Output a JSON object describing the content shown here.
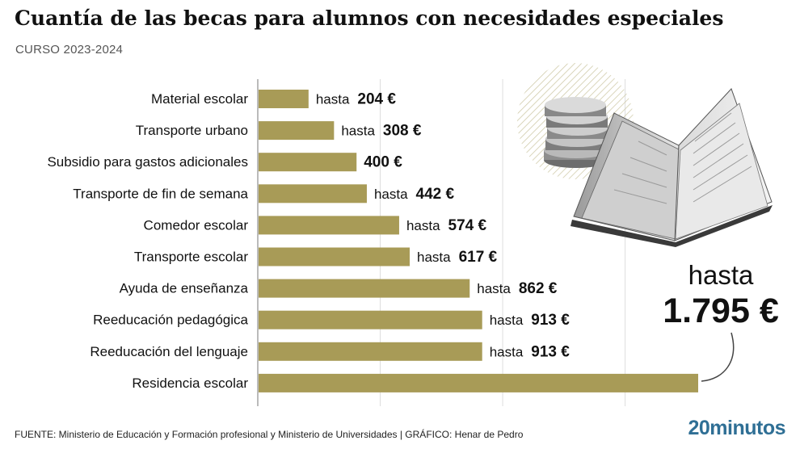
{
  "header": {
    "title": "Cuantía de las becas para alumnos con necesidades especiales",
    "subtitle": "CURSO 2023-2024"
  },
  "callout": {
    "prefix": "hasta",
    "value": "1.795 €"
  },
  "footer": {
    "source": "FUENTE: Ministerio de Educación y Formación profesional y Ministerio de Universidades  |  GRÁFICO: Henar de Pedro",
    "brand": "20minutos"
  },
  "colors": {
    "bar": "#a89b57",
    "grid": "#dddddd",
    "axis": "#777777"
  },
  "illustration": {
    "icon": "book-and-coins-icon"
  },
  "chart_data": {
    "type": "bar",
    "orientation": "horizontal",
    "xlim": [
      0,
      1795
    ],
    "grid": true,
    "categories": [
      "Material escolar",
      "Transporte urbano",
      "Subsidio para gastos adicionales",
      "Transporte de fin de semana",
      "Comedor escolar",
      "Transporte escolar",
      "Ayuda de enseñanza",
      "Reeducación pedagógica",
      "Reeducación del lenguaje",
      "Residencia escolar"
    ],
    "values": [
      204,
      308,
      400,
      442,
      574,
      617,
      862,
      913,
      913,
      1795
    ],
    "labels": [
      {
        "prefix": "hasta ",
        "value": "204 €"
      },
      {
        "prefix": "hasta ",
        "value": "308 €"
      },
      {
        "prefix": "",
        "value": "400 €"
      },
      {
        "prefix": "hasta ",
        "value": "442 €"
      },
      {
        "prefix": "hasta ",
        "value": "574 €"
      },
      {
        "prefix": "hasta ",
        "value": "617 €"
      },
      {
        "prefix": "hasta ",
        "value": "862 €"
      },
      {
        "prefix": "hasta ",
        "value": "913 €"
      },
      {
        "prefix": "hasta ",
        "value": "913 €"
      },
      {
        "prefix": "",
        "value": ""
      }
    ]
  }
}
